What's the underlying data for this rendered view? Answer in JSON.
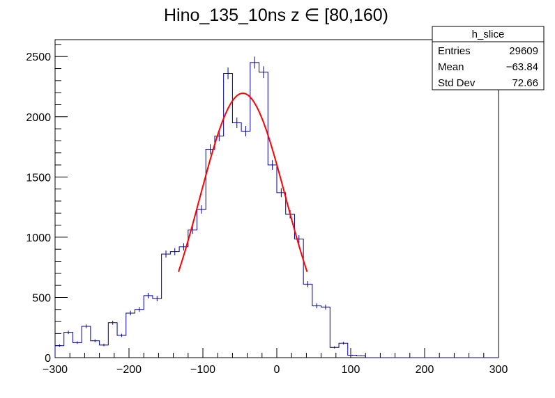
{
  "chart_data": {
    "type": "histogram",
    "title": "Hino_135_10ns z  ∈ [80,160)",
    "xlim": [
      -300,
      300
    ],
    "ylim": [
      0,
      2640
    ],
    "x_ticks": [
      -300,
      -200,
      -100,
      0,
      100,
      200,
      300
    ],
    "x_tick_labels": [
      "−300",
      "−200",
      "−100",
      "0",
      "100",
      "200",
      "300"
    ],
    "y_ticks": [
      0,
      500,
      1000,
      1500,
      2000,
      2500
    ],
    "y_tick_labels": [
      "0",
      "500",
      "1000",
      "1500",
      "2000",
      "2500"
    ],
    "bin_width": 12,
    "bin_start": -300,
    "counts": [
      100,
      210,
      125,
      260,
      140,
      105,
      290,
      185,
      370,
      400,
      515,
      490,
      860,
      880,
      920,
      1060,
      1230,
      1730,
      1840,
      2360,
      1950,
      1880,
      2450,
      2370,
      1600,
      1370,
      1190,
      985,
      610,
      430,
      420,
      85,
      120,
      20,
      15,
      0,
      0,
      0,
      0,
      0,
      0,
      0,
      0,
      0,
      0,
      0,
      0,
      0,
      0,
      0
    ],
    "line_color": "#000099",
    "fit": {
      "type": "gaussian",
      "color": "#ff0000",
      "amplitude": 2195,
      "mean": -46,
      "sigma": 58,
      "range": [
        -133,
        41
      ]
    },
    "stats": {
      "name": "h_slice",
      "rows": [
        {
          "label": "Entries",
          "value": "29609"
        },
        {
          "label": "Mean",
          "value": "−63.84"
        },
        {
          "label": "Std Dev",
          "value": "72.66"
        }
      ]
    }
  }
}
